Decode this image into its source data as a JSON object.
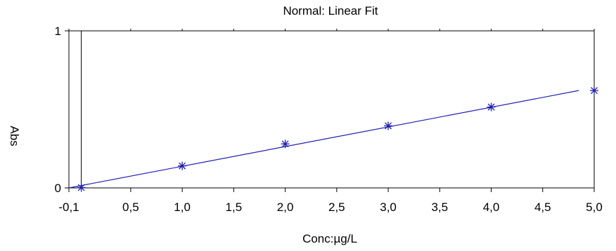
{
  "chart_data": {
    "type": "scatter",
    "title": "Normal: Linear Fit",
    "xlabel": "Conc:µg/L",
    "ylabel": "Abs",
    "xlim": [
      -0.1,
      5.0
    ],
    "ylim": [
      0,
      1
    ],
    "x_ticks": [
      "-0,1",
      "0,5",
      "1,0",
      "1,5",
      "2,0",
      "2,5",
      "3,0",
      "3,5",
      "4,0",
      "4,5",
      "5,0"
    ],
    "y_ticks": [
      "0",
      "1"
    ],
    "vertical_markers": [
      -0.1,
      0.02
    ],
    "series": [
      {
        "marker": "asterisk",
        "color": "#1f1fb4",
        "points": [
          {
            "x": 0.02,
            "y": 0.002
          },
          {
            "x": 1.0,
            "y": 0.14
          },
          {
            "x": 2.0,
            "y": 0.28
          },
          {
            "x": 3.0,
            "y": 0.395
          },
          {
            "x": 4.0,
            "y": 0.515
          },
          {
            "x": 5.0,
            "y": 0.62
          }
        ]
      },
      {
        "type": "line",
        "color": "#1f1fb4",
        "x": [
          -0.1,
          4.85
        ],
        "y": [
          0.0,
          0.62
        ]
      }
    ],
    "grid": false
  }
}
